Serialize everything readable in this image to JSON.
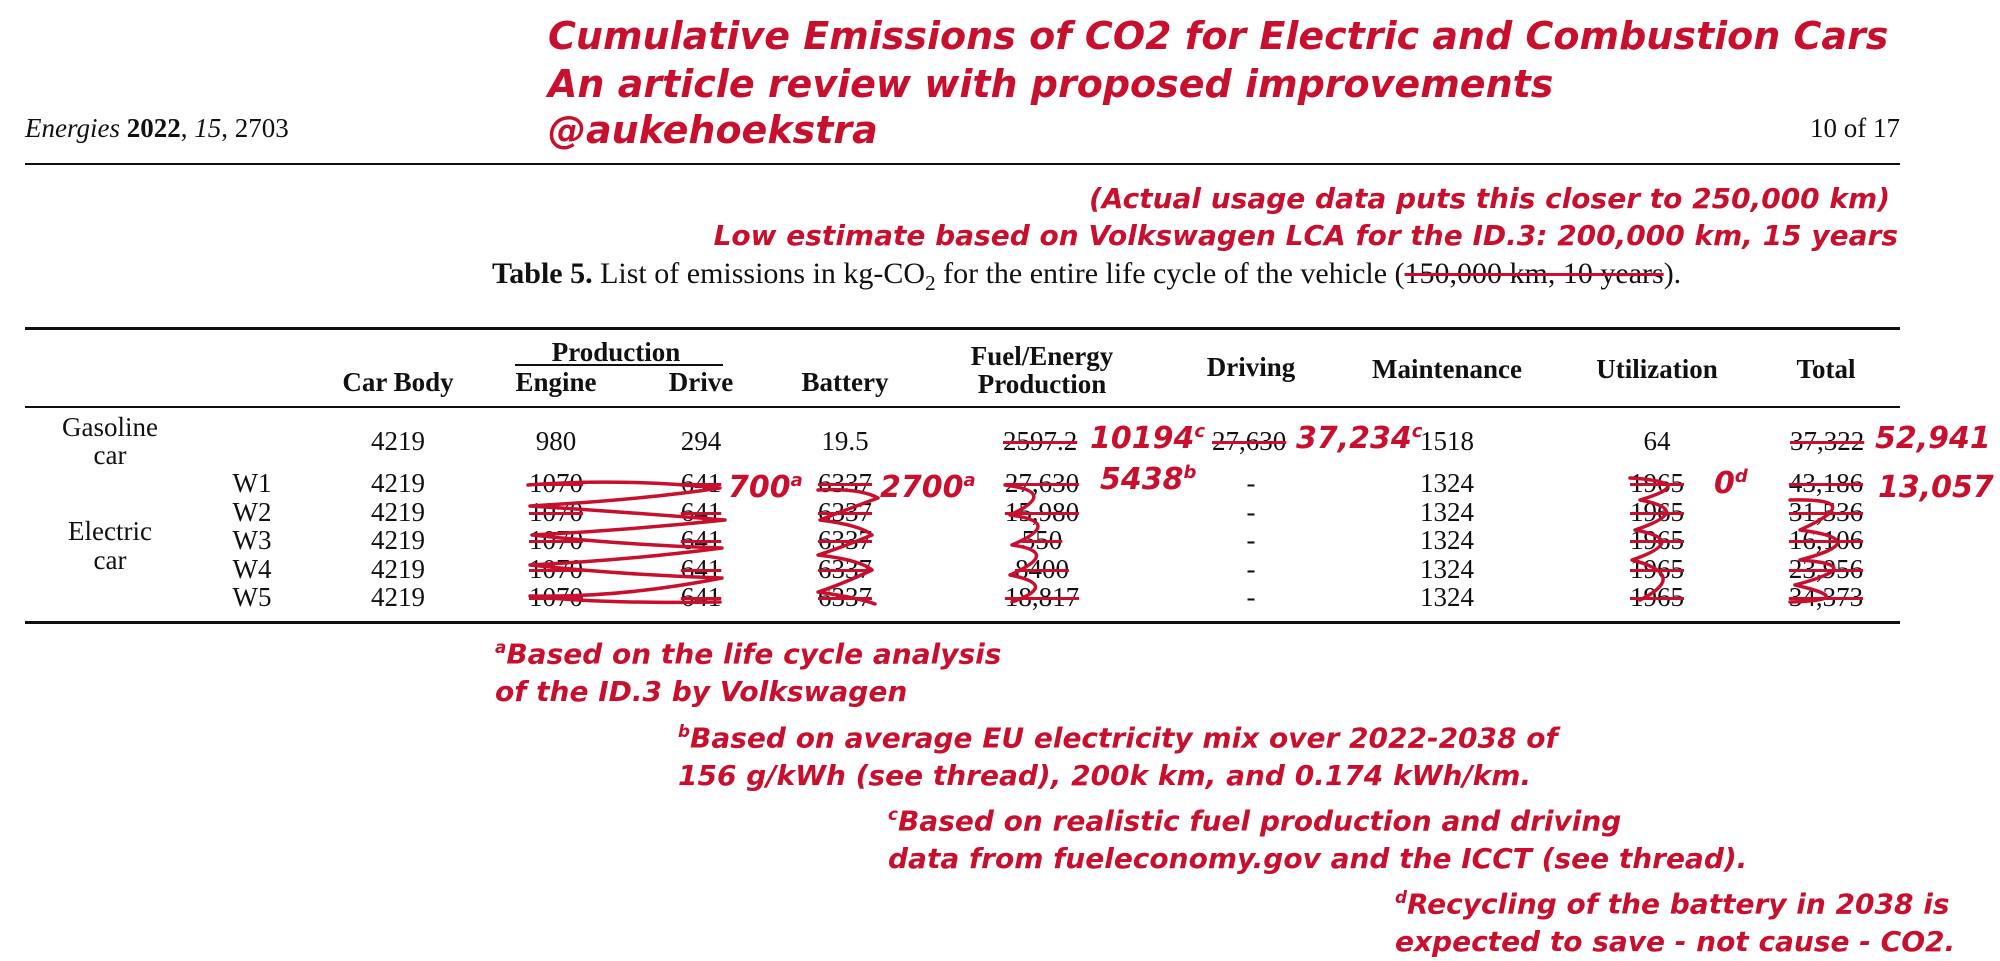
{
  "header": {
    "journal": "Energies",
    "year": "2022",
    "volume": "15",
    "article": "2703",
    "page": "10 of 17"
  },
  "annotation_title": {
    "line1": "Cumulative Emissions of CO2 for Electric and Combustion Cars",
    "line2": "An article review with proposed improvements",
    "line3": "@aukehoekstra"
  },
  "annotation_caption": {
    "line1": "(Actual usage data puts this closer to 250,000 km)",
    "line2": "Low estimate based on Volkswagen LCA for the ID.3: 200,000 km, 15 years"
  },
  "caption": {
    "label": "Table 5.",
    "text_before_sub": "List of emissions in kg-CO",
    "sub": "2",
    "text_after_sub": " for the entire life cycle of the vehicle (",
    "struck": "150,000 km, 10 years",
    "closing": ")."
  },
  "table": {
    "headers": {
      "car_body": "Car Body",
      "production": "Production",
      "engine": "Engine",
      "drive": "Drive",
      "battery": "Battery",
      "fuel_line1": "Fuel/Energy",
      "fuel_line2": "Production",
      "driving": "Driving",
      "maintenance": "Maintenance",
      "utilization": "Utilization",
      "total": "Total"
    },
    "gasoline": {
      "label_line1": "Gasoline",
      "label_line2": "car",
      "car_body": "4219",
      "engine": "980",
      "drive": "294",
      "battery": "19.5",
      "fuel": "2597.2",
      "driving": "27,630",
      "maintenance": "1518",
      "utilization": "64",
      "total": "37,322"
    },
    "electric_label_line1": "Electric",
    "electric_label_line2": "car",
    "electric_rows": [
      {
        "name": "W1",
        "car_body": "4219",
        "engine": "1070",
        "drive": "641",
        "battery": "6337",
        "fuel": "27,630",
        "driving": "-",
        "maintenance": "1324",
        "utilization": "1965",
        "total": "43,186"
      },
      {
        "name": "W2",
        "car_body": "4219",
        "engine": "1070",
        "drive": "641",
        "battery": "6337",
        "fuel": "15,980",
        "driving": "-",
        "maintenance": "1324",
        "utilization": "1965",
        "total": "31,536"
      },
      {
        "name": "W3",
        "car_body": "4219",
        "engine": "1070",
        "drive": "641",
        "battery": "6337",
        "fuel": "550",
        "driving": "-",
        "maintenance": "1324",
        "utilization": "1965",
        "total": "16,106"
      },
      {
        "name": "W4",
        "car_body": "4219",
        "engine": "1070",
        "drive": "641",
        "battery": "6337",
        "fuel": "8400",
        "driving": "-",
        "maintenance": "1324",
        "utilization": "1965",
        "total": "23,956"
      },
      {
        "name": "W5",
        "car_body": "4219",
        "engine": "1070",
        "drive": "641",
        "battery": "6337",
        "fuel": "18,817",
        "driving": "-",
        "maintenance": "1324",
        "utilization": "1965",
        "total": "34,373"
      }
    ]
  },
  "corrections": {
    "gas_fuel": "10194",
    "gas_fuel_mark": "c",
    "gas_driving": "37,234",
    "gas_driving_mark": "c",
    "gas_total": "52,941",
    "ev_production": "700",
    "ev_production_mark": "a",
    "ev_battery": "2700",
    "ev_battery_mark": "a",
    "ev_fuel": "5438",
    "ev_fuel_mark": "b",
    "ev_utilization": "0",
    "ev_utilization_mark": "d",
    "ev_total": "13,057"
  },
  "notes": {
    "a_mark": "a",
    "a_line1": "Based on the life cycle analysis",
    "a_line2": "of the ID.3 by Volkswagen",
    "b_mark": "b",
    "b_line1": "Based on average EU electricity mix over 2022-2038 of",
    "b_line2": "156 g/kWh (see thread), 200k km, and 0.174 kWh/km.",
    "c_mark": "c",
    "c_line1": "Based on realistic fuel production and driving",
    "c_line2": "data from fueleconomy.gov and the ICCT (see thread).",
    "d_mark": "d",
    "d_line1": "Recycling of the battery in 2038 is",
    "d_line2": "expected to save - not cause - CO2."
  },
  "colors": {
    "annotation": "#c8102e",
    "text": "#111111"
  }
}
